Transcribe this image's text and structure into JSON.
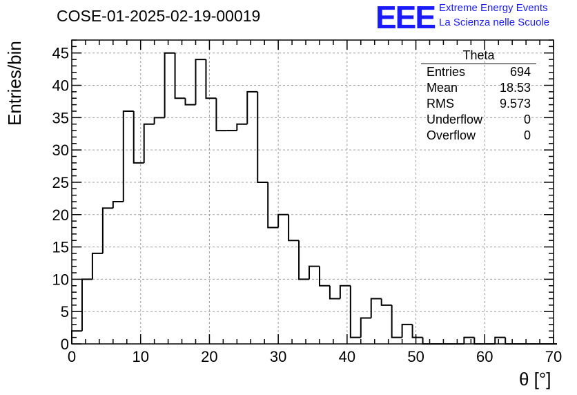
{
  "title": "COSE-01-2025-02-19-00019",
  "logo": {
    "mark": "EEE",
    "line1": "Extreme Energy Events",
    "line2": "La Scienza nelle Scuole"
  },
  "stats": {
    "name": "Theta",
    "rows": [
      {
        "label": "Entries",
        "value": "694"
      },
      {
        "label": "Mean",
        "value": "18.53"
      },
      {
        "label": "RMS",
        "value": "9.573"
      },
      {
        "label": "Underflow",
        "value": "0"
      },
      {
        "label": "Overflow",
        "value": "0"
      }
    ]
  },
  "colors": {
    "line": "#000000",
    "grid": "#a0a0a0",
    "logo": "#1a1aff"
  },
  "chart_data": {
    "type": "histogram",
    "title": "COSE-01-2025-02-19-00019",
    "xlabel": "θ [°]",
    "ylabel": "Entries/bin",
    "xlim": [
      0,
      70
    ],
    "ylim": [
      0,
      47
    ],
    "grid": true,
    "x_ticks": [
      0,
      10,
      20,
      30,
      40,
      50,
      60,
      70
    ],
    "y_ticks": [
      0,
      5,
      10,
      15,
      20,
      25,
      30,
      35,
      40,
      45
    ],
    "bin_width": 1.5,
    "bin_start": 0,
    "values": [
      2,
      10,
      14,
      21,
      22,
      36,
      28,
      34,
      35,
      45,
      38,
      37,
      44,
      38,
      33,
      33,
      34,
      39,
      25,
      18,
      20,
      16,
      10,
      12,
      9,
      7,
      9,
      1,
      4,
      7,
      6,
      1,
      3,
      1,
      0,
      0,
      0,
      0,
      1,
      0,
      0,
      1,
      0,
      0,
      0,
      0,
      0
    ]
  }
}
